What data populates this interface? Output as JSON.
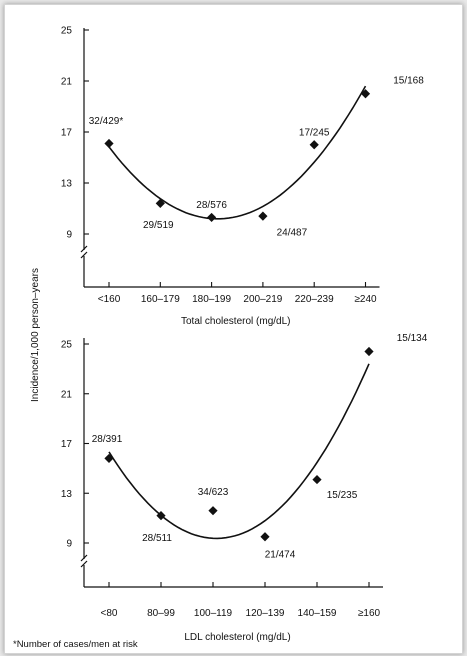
{
  "ylabel": "Incidence/1,000 person–years",
  "footnote": "*Number of cases/men at risk",
  "chart_data": [
    {
      "type": "scatter",
      "xlabel": "Total cholesterol (mg/dL)",
      "categories": [
        "<160",
        "160–179",
        "180–199",
        "200–219",
        "220–239",
        "≥240"
      ],
      "values": [
        16.1,
        11.4,
        10.3,
        10.4,
        16.0,
        20.0
      ],
      "point_labels": [
        "32/429*",
        "29/519",
        "28/576",
        "24/487",
        "17/245",
        "15/168"
      ],
      "yticks": [
        9,
        13,
        17,
        21,
        25
      ],
      "ylim": [
        9,
        25
      ],
      "axis_break": true,
      "trend": "quadratic fit curve"
    },
    {
      "type": "scatter",
      "xlabel": "LDL cholesterol (mg/dL)",
      "categories": [
        "<80",
        "80–99",
        "100–119",
        "120–139",
        "140–159",
        "≥160"
      ],
      "values": [
        15.8,
        11.2,
        11.6,
        9.5,
        14.1,
        24.4
      ],
      "point_labels": [
        "28/391",
        "28/511",
        "34/623",
        "21/474",
        "15/235",
        "15/134"
      ],
      "yticks": [
        9,
        13,
        17,
        21,
        25
      ],
      "ylim": [
        9,
        25
      ],
      "axis_break": true,
      "trend": "quadratic fit curve"
    }
  ]
}
